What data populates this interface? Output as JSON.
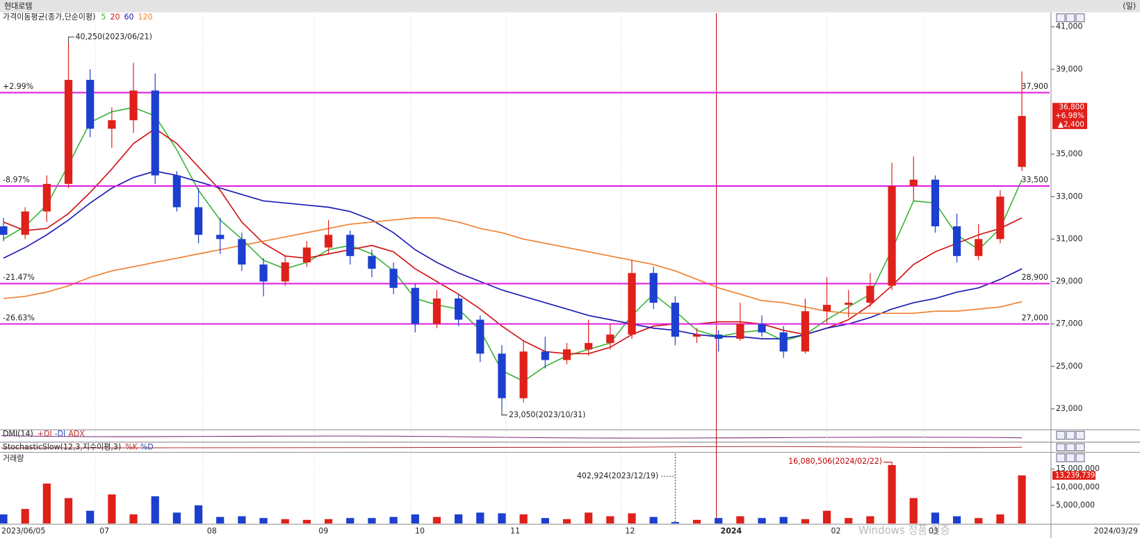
{
  "header": {
    "title": "현대로템",
    "period": "(일)"
  },
  "chart_data": {
    "type": "candlestick",
    "legend": {
      "title": "가격이동평균(종가,단순이평)"
    },
    "xlim": [
      -0.16,
      48.28
    ],
    "x_start_label": "2023/06/05",
    "x_end_label": "2024/03/29",
    "xticks": [
      {
        "value": 4.24,
        "label": "07"
      },
      {
        "value": 9.2,
        "label": "08"
      },
      {
        "value": 14.35,
        "label": "09"
      },
      {
        "value": 18.8,
        "label": "10"
      },
      {
        "value": 23.2,
        "label": "11"
      },
      {
        "value": 28.5,
        "label": "12"
      },
      {
        "value": 32.9,
        "label": "2024",
        "marker_color": "#c00000"
      },
      {
        "value": 38,
        "label": "02"
      },
      {
        "value": 42.5,
        "label": "03"
      }
    ],
    "ylim": [
      22010,
      41650
    ],
    "yticks": [
      {
        "value": 41000,
        "label": "41,000"
      },
      {
        "value": 39000,
        "label": "39,000"
      },
      {
        "value": 35000,
        "label": "35,000"
      },
      {
        "value": 33000,
        "label": "33,000"
      },
      {
        "value": 31000,
        "label": "31,000"
      },
      {
        "value": 29000,
        "label": "29,000"
      },
      {
        "value": 27000,
        "label": "27,000"
      },
      {
        "value": 25000,
        "label": "25,000"
      },
      {
        "value": 23000,
        "label": "23,000"
      }
    ],
    "grid": true,
    "up_color": "#e0201a",
    "down_color": "#1c3fd0",
    "open": [
      31600,
      31200,
      32300,
      33600,
      38500,
      36200,
      36600,
      38000,
      34000,
      32500,
      31200,
      31000,
      29800,
      29000,
      29900,
      30600,
      31200,
      30200,
      29600,
      28700,
      27000,
      28200,
      27200,
      25600,
      23500,
      25700,
      25300,
      25800,
      26100,
      26500,
      29400,
      28000,
      26400,
      26500,
      26300,
      27000,
      26600,
      25700,
      27600,
      27900,
      28000,
      28800,
      33500,
      33800,
      31600,
      30200,
      31000,
      34400
    ],
    "high": [
      32000,
      32500,
      34000,
      40250,
      39000,
      37200,
      39300,
      38800,
      34200,
      33400,
      32000,
      31300,
      30100,
      30200,
      30900,
      31900,
      31400,
      30500,
      29900,
      28900,
      28600,
      28400,
      27400,
      26000,
      26200,
      26400,
      26100,
      27200,
      27000,
      30000,
      29700,
      28300,
      26800,
      26700,
      28000,
      27400,
      26900,
      28200,
      29200,
      28600,
      29400,
      34600,
      34900,
      34000,
      32200,
      31700,
      33300,
      38900
    ],
    "low": [
      30900,
      31000,
      31800,
      33400,
      35800,
      35300,
      36000,
      33600,
      32300,
      30800,
      30300,
      29500,
      28300,
      28800,
      29700,
      30300,
      29800,
      29200,
      28400,
      26600,
      26800,
      26900,
      25200,
      23050,
      23300,
      24900,
      25100,
      25500,
      25800,
      26300,
      27700,
      26000,
      26100,
      25700,
      26200,
      26400,
      25400,
      25600,
      27000,
      27300,
      27800,
      28600,
      32800,
      31300,
      29900,
      30000,
      30800,
      34200
    ],
    "close": [
      31200,
      32300,
      33600,
      38500,
      36200,
      36600,
      38000,
      34000,
      32500,
      31200,
      31000,
      29800,
      29000,
      29900,
      30600,
      31200,
      30200,
      29600,
      28700,
      27000,
      28200,
      27200,
      25600,
      23500,
      25700,
      25300,
      25800,
      26100,
      26500,
      29400,
      28000,
      26400,
      26500,
      26300,
      27000,
      26600,
      25700,
      27600,
      27900,
      28000,
      28800,
      33500,
      33800,
      31600,
      30200,
      31000,
      33000,
      36800
    ],
    "moving_averages": [
      {
        "name": "5",
        "color": "#3cb43c",
        "values": [
          31000,
          31600,
          32600,
          34500,
          36500,
          37000,
          37200,
          36800,
          35200,
          33300,
          31900,
          31000,
          30000,
          29600,
          29900,
          30500,
          30700,
          30300,
          29500,
          28200,
          27900,
          27700,
          26700,
          24800,
          24300,
          25000,
          25500,
          25800,
          26100,
          27400,
          28400,
          27600,
          26700,
          26400,
          26600,
          26700,
          26200,
          26500,
          27200,
          27800,
          28400,
          30500,
          32800,
          32700,
          31200,
          30500,
          31500,
          33800
        ]
      },
      {
        "name": "20",
        "color": "#d01010",
        "values": [
          31800,
          31400,
          31500,
          32200,
          33200,
          34300,
          35500,
          36200,
          35500,
          34400,
          33300,
          31800,
          30800,
          30200,
          30100,
          30300,
          30500,
          30700,
          30400,
          29600,
          29000,
          28400,
          27700,
          26900,
          26200,
          25700,
          25600,
          25600,
          25900,
          26500,
          26900,
          27000,
          27000,
          27100,
          27100,
          27000,
          26700,
          26500,
          26800,
          27200,
          27900,
          28800,
          29800,
          30400,
          30800,
          31200,
          31500,
          32000
        ]
      },
      {
        "name": "60",
        "color": "#1a1ab4",
        "values": [
          30100,
          30600,
          31200,
          31900,
          32700,
          33400,
          33900,
          34200,
          34000,
          33700,
          33400,
          33100,
          32800,
          32700,
          32600,
          32500,
          32300,
          31900,
          31300,
          30500,
          29900,
          29400,
          29000,
          28600,
          28300,
          28000,
          27700,
          27400,
          27200,
          27000,
          26800,
          26700,
          26500,
          26400,
          26400,
          26300,
          26300,
          26500,
          26800,
          27000,
          27300,
          27700,
          28000,
          28200,
          28500,
          28700,
          29100,
          29600
        ]
      },
      {
        "name": "120",
        "color": "#f08030",
        "values": [
          28200,
          28300,
          28500,
          28800,
          29200,
          29500,
          29700,
          29900,
          30100,
          30300,
          30500,
          30700,
          30900,
          31100,
          31300,
          31500,
          31700,
          31800,
          31900,
          32000,
          32000,
          31800,
          31500,
          31300,
          31000,
          30800,
          30600,
          30400,
          30200,
          30000,
          29800,
          29500,
          29100,
          28700,
          28400,
          28100,
          28000,
          27800,
          27600,
          27500,
          27500,
          27500,
          27500,
          27600,
          27600,
          27700,
          27800,
          28050
        ]
      }
    ],
    "levels": [
      {
        "value": 37900,
        "label": "37,900",
        "pct": "+2.99%"
      },
      {
        "value": 33500,
        "label": "33,500",
        "pct": "-8.97%"
      },
      {
        "value": 28900,
        "label": "28,900",
        "pct": "-21.47%"
      },
      {
        "value": 27000,
        "label": "27,000",
        "pct": "-26.63%"
      }
    ],
    "level_color": "#e020e0",
    "annotations": [
      {
        "x": 3,
        "value": 40250,
        "text": "40,250(2023/06/21)"
      },
      {
        "x": 23,
        "value": 23050,
        "text": "23,050(2023/10/31)"
      }
    ],
    "last": {
      "price": "36,800",
      "change_pct": "+6.98%",
      "change": "▲2,400"
    }
  },
  "indicators": [
    {
      "title": "DMI(14)",
      "items": [
        "+DI",
        "-DI",
        "ADX"
      ]
    },
    {
      "title": "StochasticSlow(12,3,지수이평,3)",
      "items": [
        "%K",
        "%D"
      ]
    }
  ],
  "volume": {
    "title": "거래량",
    "ylim": [
      0,
      19600000
    ],
    "yticks": [
      {
        "value": 5000000,
        "label": "5,000,000"
      },
      {
        "value": 10000000,
        "label": "10,000,000"
      },
      {
        "value": 15000000,
        "label": "15,000,000"
      }
    ],
    "values": [
      2500000,
      4000000,
      11000000,
      7000000,
      3500000,
      8000000,
      2500000,
      7500000,
      3000000,
      5000000,
      1800000,
      2000000,
      1500000,
      1200000,
      1000000,
      1200000,
      1500000,
      1500000,
      1800000,
      2500000,
      1800000,
      2500000,
      3000000,
      2800000,
      2500000,
      1500000,
      1200000,
      3000000,
      2000000,
      2800000,
      1800000,
      402924,
      1000000,
      1500000,
      2000000,
      1500000,
      1800000,
      1200000,
      3500000,
      1500000,
      2000000,
      16080506,
      7000000,
      3000000,
      2000000,
      1500000,
      2500000,
      13239739
    ],
    "annotations": [
      {
        "x": 31,
        "value": 402924,
        "text": "402,924(2023/12/19)"
      },
      {
        "x": 41,
        "value": 16080506,
        "text": "16,080,506(2024/02/22)"
      }
    ],
    "last": "13,239,739"
  },
  "watermark": "Windows 정품 인증"
}
